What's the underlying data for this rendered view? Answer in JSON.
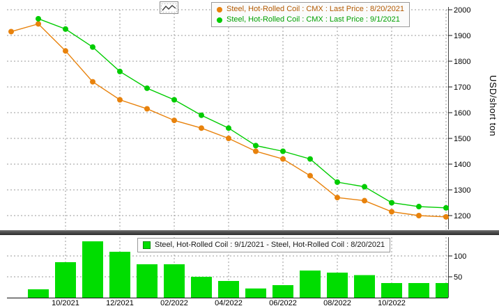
{
  "icons": {
    "toolbar_button": "mini-line-chart-icon",
    "top_legend_marker": "circle-marker",
    "bottom_legend_marker": "square-marker"
  },
  "chart_data": [
    {
      "type": "line",
      "ylabel": "USD/short ton",
      "grid": true,
      "legend_position": "top",
      "ylim": [
        1150,
        2010
      ],
      "yticks": [
        1200,
        1300,
        1400,
        1500,
        1600,
        1700,
        1800,
        1900,
        2000
      ],
      "x": [
        "08/2021",
        "09/2021",
        "10/2021",
        "11/2021",
        "12/2021",
        "01/2022",
        "02/2022",
        "03/2022",
        "04/2022",
        "05/2022",
        "06/2022",
        "07/2022",
        "08/2022",
        "09/2022",
        "10/2022",
        "11/2022",
        "12/2022"
      ],
      "xtick_labels": [
        "10/2021",
        "12/2021",
        "02/2022",
        "04/2022",
        "06/2022",
        "08/2022",
        "10/2022"
      ],
      "series": [
        {
          "name": "Steel, Hot-Rolled Coil : CMX : Last Price : 8/20/2021",
          "color": "#e8820c",
          "legend_text_color": "#b25900",
          "values": [
            1915,
            1945,
            1840,
            1720,
            1650,
            1615,
            1570,
            1540,
            1500,
            1450,
            1420,
            1355,
            1270,
            1258,
            1215,
            1200,
            1195
          ]
        },
        {
          "name": "Steel, Hot-Rolled Coil : CMX : Last Price : 9/1/2021",
          "color": "#00cc00",
          "legend_text_color": "#00a000",
          "values": [
            null,
            1965,
            1925,
            1855,
            1760,
            1695,
            1650,
            1590,
            1540,
            1472,
            1450,
            1420,
            1330,
            1312,
            1250,
            1235,
            1230
          ]
        }
      ]
    },
    {
      "type": "bar",
      "name": "Steel, Hot-Rolled Coil : 9/1/2021 - Steel, Hot-Rolled Coil : 8/20/2021",
      "color": "#00dd00",
      "ylim": [
        0,
        145
      ],
      "yticks": [
        50,
        100
      ],
      "categories": [
        "09/2021",
        "10/2021",
        "11/2021",
        "12/2021",
        "01/2022",
        "02/2022",
        "03/2022",
        "04/2022",
        "05/2022",
        "06/2022",
        "07/2022",
        "08/2022",
        "09/2022",
        "10/2022",
        "11/2022",
        "12/2022"
      ],
      "values": [
        20,
        85,
        135,
        110,
        80,
        80,
        50,
        40,
        22,
        30,
        65,
        60,
        54,
        35,
        35,
        35
      ]
    }
  ]
}
